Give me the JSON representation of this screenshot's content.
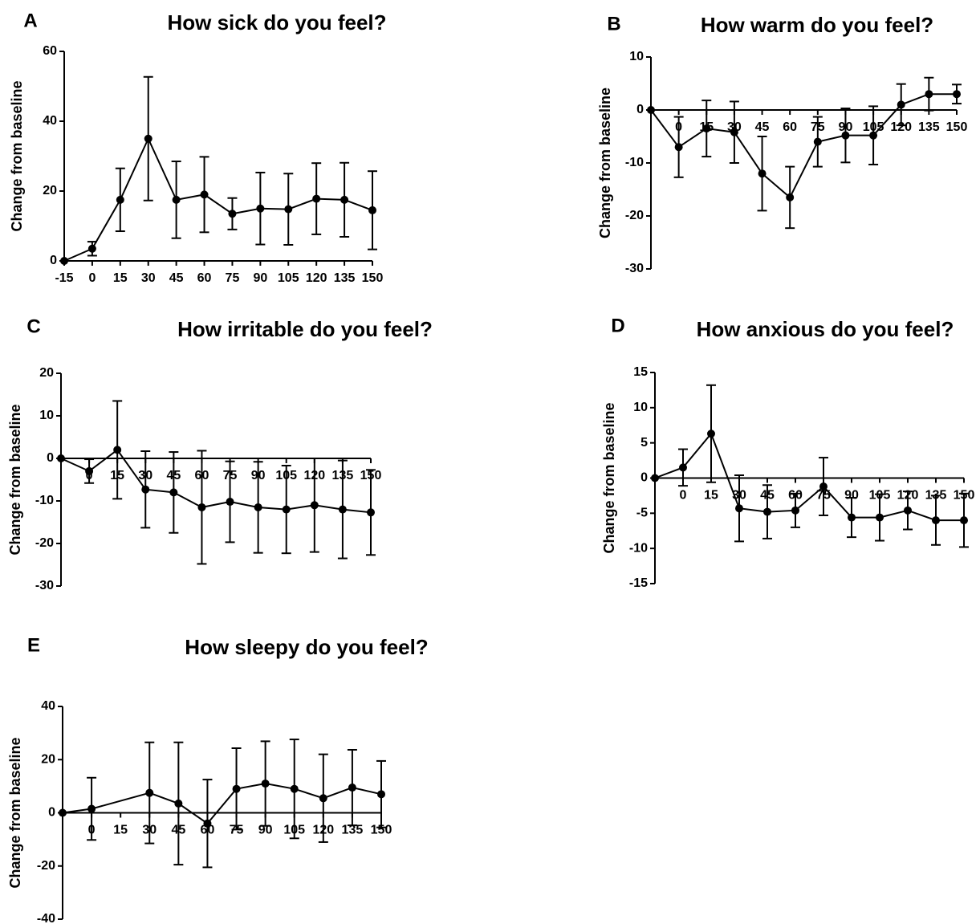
{
  "chart_data": [
    {
      "type": "line",
      "panel_label": "A",
      "title": "How sick do you feel?",
      "y_label": "Change from baseline",
      "color": "#000000",
      "x": [
        -15,
        0,
        15,
        30,
        45,
        60,
        75,
        90,
        105,
        120,
        135,
        150
      ],
      "values": [
        0,
        3.5,
        17.5,
        35,
        17.5,
        19,
        13.5,
        15,
        14.8,
        17.8,
        17.5,
        14.5
      ],
      "errors": [
        null,
        2,
        9,
        17.7,
        11,
        10.8,
        4.5,
        10.3,
        10.2,
        10.2,
        10.6,
        11.2
      ],
      "xlim": [
        -15,
        150
      ],
      "xticks": [
        -15,
        0,
        15,
        30,
        45,
        60,
        75,
        90,
        105,
        120,
        135,
        150
      ],
      "ylim": [
        0,
        60
      ],
      "yticks": [
        0,
        20,
        40,
        60
      ]
    },
    {
      "type": "line",
      "panel_label": "B",
      "title": "How warm do you feel?",
      "y_label": "Change from baseline",
      "color": "#000000",
      "x": [
        -15,
        0,
        15,
        30,
        45,
        60,
        75,
        90,
        105,
        120,
        135,
        150
      ],
      "values": [
        0,
        -7,
        -3.5,
        -4.2,
        -12,
        -16.5,
        -6,
        -4.8,
        -4.8,
        1,
        3,
        3
      ],
      "errors": [
        null,
        5.7,
        5.3,
        5.8,
        7,
        5.8,
        4.7,
        5.1,
        5.5,
        3.9,
        3.1,
        1.8
      ],
      "xlim": [
        -15,
        150
      ],
      "xticks": [
        0,
        15,
        30,
        45,
        60,
        75,
        90,
        105,
        120,
        135,
        150
      ],
      "ylim": [
        -30,
        10
      ],
      "yticks": [
        -30,
        -20,
        -10,
        0,
        10
      ]
    },
    {
      "type": "line",
      "panel_label": "C",
      "title": "How irritable do you feel?",
      "y_label": "Change from baseline",
      "color": "#000000",
      "x": [
        -15,
        0,
        15,
        30,
        45,
        60,
        75,
        90,
        105,
        120,
        135,
        150
      ],
      "values": [
        0,
        -3,
        2,
        -7.3,
        -8,
        -11.5,
        -10.2,
        -11.5,
        -12,
        -11,
        -12,
        -12.7
      ],
      "errors": [
        null,
        2.8,
        11.5,
        9,
        9.5,
        13.3,
        9.5,
        10.7,
        10.3,
        11,
        11.5,
        10
      ],
      "xlim": [
        -15,
        150
      ],
      "xticks": [
        0,
        15,
        30,
        45,
        60,
        75,
        90,
        105,
        120,
        135,
        150
      ],
      "ylim": [
        -30,
        20
      ],
      "yticks": [
        -30,
        -20,
        -10,
        0,
        10,
        20
      ]
    },
    {
      "type": "line",
      "panel_label": "D",
      "title": "How anxious do you feel?",
      "y_label": "Change from baseline",
      "color": "#000000",
      "x": [
        -15,
        0,
        15,
        30,
        45,
        60,
        75,
        90,
        105,
        120,
        135,
        150
      ],
      "values": [
        0,
        1.5,
        6.3,
        -4.3,
        -4.8,
        -4.6,
        -1.2,
        -5.6,
        -5.6,
        -4.6,
        -6,
        -6
      ],
      "errors": [
        null,
        2.6,
        6.9,
        4.7,
        3.8,
        2.4,
        4.1,
        2.8,
        3.3,
        2.7,
        3.5,
        3.8
      ],
      "xlim": [
        -15,
        150
      ],
      "xticks": [
        0,
        15,
        30,
        45,
        60,
        75,
        90,
        105,
        120,
        135,
        150
      ],
      "ylim": [
        -15,
        15
      ],
      "yticks": [
        -15,
        -10,
        -5,
        0,
        5,
        10,
        15
      ]
    },
    {
      "type": "line",
      "panel_label": "E",
      "title": "How sleepy do you feel?",
      "y_label": "Change from baseline",
      "color": "#000000",
      "x": [
        -15,
        0,
        30,
        45,
        60,
        75,
        90,
        105,
        120,
        135,
        150
      ],
      "values": [
        0,
        1.5,
        7.5,
        3.5,
        -4,
        9,
        11,
        9,
        5.5,
        9.5,
        7
      ],
      "errors": [
        null,
        11.7,
        19,
        23,
        16.5,
        15.3,
        15.9,
        18.6,
        16.5,
        14.2,
        12.5
      ],
      "xlim": [
        -15,
        150
      ],
      "xticks": [
        0,
        15,
        30,
        45,
        60,
        75,
        90,
        105,
        120,
        135,
        150
      ],
      "ylim": [
        -40,
        40
      ],
      "yticks": [
        -40,
        -20,
        0,
        20,
        40
      ]
    }
  ]
}
